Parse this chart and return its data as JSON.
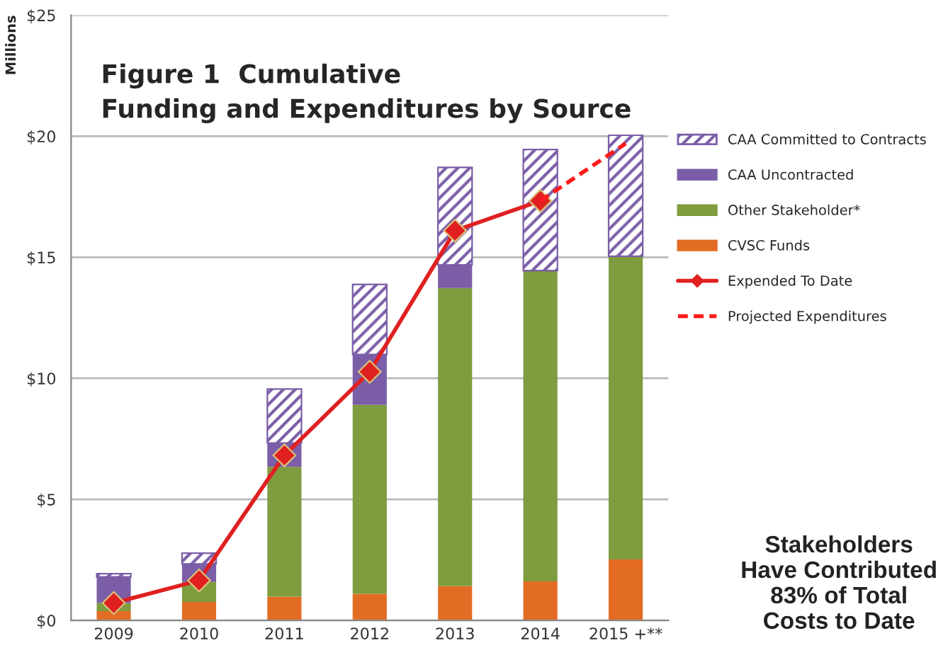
{
  "chart_data": {
    "type": "bar",
    "stacked": true,
    "title": "Figure 1  Cumulative\nFunding and Expenditures by Source",
    "ylabel": "Millions",
    "categories": [
      "2009",
      "2010",
      "2011",
      "2012",
      "2013",
      "2014",
      "2015 +**"
    ],
    "series": [
      {
        "name": "CVSC Funds",
        "color": "#e36c25",
        "values": [
          0.38,
          0.76,
          0.98,
          1.1,
          1.42,
          1.61,
          2.52
        ]
      },
      {
        "name": "Other Stakeholder*",
        "color": "#7f9c3e",
        "values": [
          0.34,
          0.83,
          5.36,
          7.8,
          12.31,
          12.84,
          12.52
        ]
      },
      {
        "name": "CAA Uncontracted",
        "color": "#7b5ea7",
        "values": [
          1.08,
          0.74,
          0.99,
          2.08,
          0.95,
          null,
          null
        ]
      },
      {
        "name": "CAA Committed to Contracts",
        "color": "#7b5ea7",
        "values": [
          0.13,
          0.45,
          2.23,
          2.9,
          4.03,
          5.0,
          5.0
        ]
      },
      {
        "name": "Expended To Date",
        "type": "line",
        "color": "#e02020",
        "marker": "diamond",
        "line_style": "solid",
        "values": [
          0.72,
          1.65,
          6.82,
          10.27,
          16.1,
          17.33,
          null
        ]
      },
      {
        "name": "Projected Expenditures",
        "type": "line",
        "color": "#ff1a1a",
        "marker": "none",
        "line_style": "dashed",
        "values": [
          null,
          null,
          null,
          null,
          null,
          17.33,
          19.7
        ]
      }
    ],
    "ylim": [
      0,
      25
    ],
    "yticks": [
      {
        "value": 0,
        "label": "$0"
      },
      {
        "value": 5,
        "label": "$5"
      },
      {
        "value": 10,
        "label": "$10"
      },
      {
        "value": 15,
        "label": "$15"
      },
      {
        "value": 20,
        "label": "$20"
      },
      {
        "value": 25,
        "label": "$25"
      }
    ],
    "grid": "y",
    "legend": "right",
    "annotations": [
      "Stakeholders\nHave Contributed\n83% of Total\nCosts to Date"
    ]
  }
}
